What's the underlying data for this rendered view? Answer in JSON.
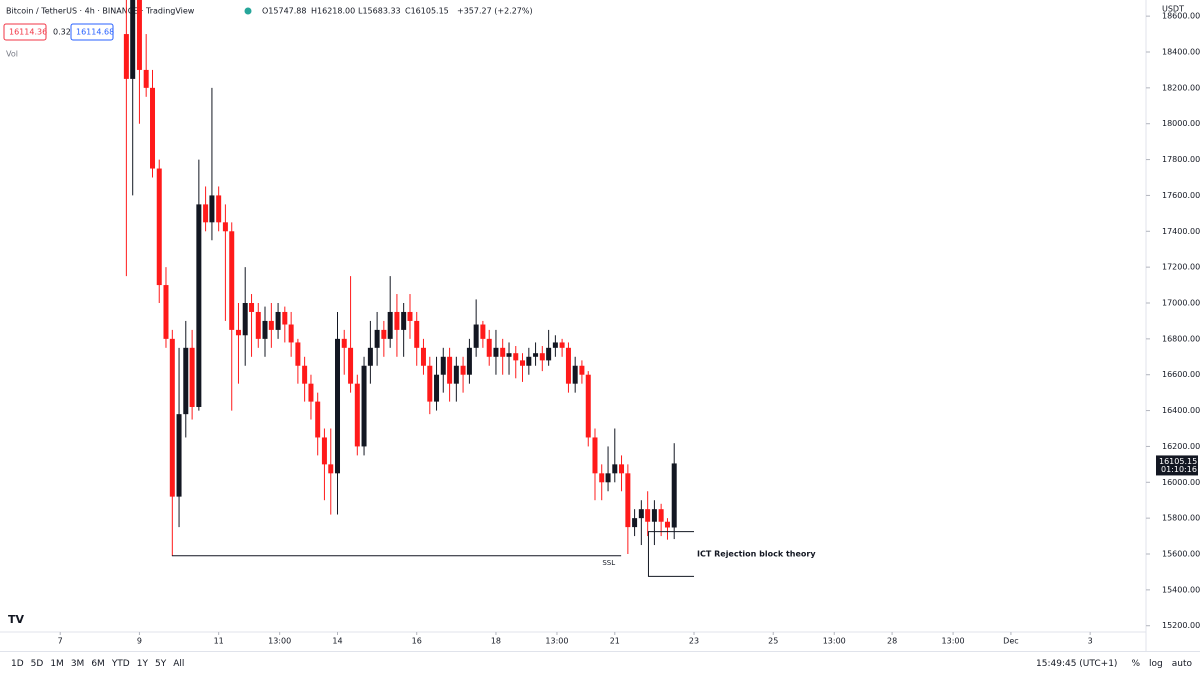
{
  "header": {
    "symbol": "Bitcoin / TetherUS · 4h · BINANCE · TradingView",
    "open": "O15747.88",
    "high": "H16218.00",
    "low": "L15683.33",
    "close": "C16105.15",
    "change": "+357.27 (+2.27%)",
    "bid": "16114.36",
    "spread": "0.32",
    "ask": "16114.68",
    "volume": "Vol",
    "currency": "USDT"
  },
  "chart_data": {
    "type": "candlestick",
    "x": [
      8.67,
      8.83,
      9,
      9.17,
      9.33,
      9.5,
      9.67,
      9.83,
      10,
      10.17,
      10.33,
      10.5,
      10.67,
      10.83,
      11,
      11.17,
      11.33,
      11.5,
      11.67,
      11.83,
      12,
      12.17,
      12.33,
      12.5,
      12.67,
      12.83,
      13,
      13.17,
      13.33,
      13.5,
      13.67,
      13.83,
      14,
      14.17,
      14.33,
      14.5,
      14.67,
      14.83,
      15,
      15.17,
      15.33,
      15.5,
      15.67,
      15.83,
      16,
      16.17,
      16.33,
      16.5,
      16.67,
      16.83,
      17,
      17.17,
      17.33,
      17.5,
      17.67,
      17.83,
      18,
      18.17,
      18.33,
      18.5,
      18.67,
      18.83,
      19,
      19.17,
      19.33,
      19.5,
      19.67,
      19.83,
      20,
      20.17,
      20.33,
      20.5,
      20.67,
      20.83,
      21,
      21.17,
      21.33,
      21.5,
      21.67,
      21.83,
      22,
      22.17,
      22.33,
      22.5
    ],
    "candles": [
      [
        18500,
        18900,
        17150,
        18250
      ],
      [
        18250,
        18850,
        17600,
        18700
      ],
      [
        18700,
        18850,
        18000,
        18300
      ],
      [
        18300,
        18500,
        18150,
        18200
      ],
      [
        18200,
        18300,
        17700,
        17750
      ],
      [
        17750,
        17800,
        17000,
        17100
      ],
      [
        17100,
        17200,
        16750,
        16800
      ],
      [
        16800,
        16850,
        15590,
        15920
      ],
      [
        15920,
        16750,
        15750,
        16380
      ],
      [
        16380,
        16900,
        16250,
        16750
      ],
      [
        16750,
        16850,
        16350,
        16420
      ],
      [
        16420,
        17800,
        16400,
        17550
      ],
      [
        17550,
        17650,
        17400,
        17450
      ],
      [
        17450,
        18200,
        17350,
        17600
      ],
      [
        17600,
        17650,
        17400,
        17450
      ],
      [
        17450,
        17550,
        16900,
        17400
      ],
      [
        17400,
        17450,
        16400,
        16850
      ],
      [
        16850,
        17000,
        16550,
        16820
      ],
      [
        16820,
        17200,
        16650,
        17000
      ],
      [
        17000,
        17050,
        16700,
        16950
      ],
      [
        16950,
        17000,
        16750,
        16800
      ],
      [
        16800,
        16980,
        16700,
        16900
      ],
      [
        16900,
        17000,
        16750,
        16850
      ],
      [
        16850,
        17000,
        16800,
        16950
      ],
      [
        16950,
        16980,
        16780,
        16880
      ],
      [
        16880,
        16950,
        16700,
        16780
      ],
      [
        16780,
        16800,
        16550,
        16650
      ],
      [
        16650,
        16700,
        16450,
        16550
      ],
      [
        16550,
        16600,
        16350,
        16450
      ],
      [
        16450,
        16500,
        16150,
        16250
      ],
      [
        16250,
        16300,
        15900,
        16100
      ],
      [
        16100,
        16300,
        15820,
        16050
      ],
      [
        16050,
        16950,
        15820,
        16800
      ],
      [
        16800,
        16850,
        16600,
        16750
      ],
      [
        16750,
        17150,
        16500,
        16550
      ],
      [
        16550,
        16600,
        16150,
        16200
      ],
      [
        16200,
        16700,
        16150,
        16650
      ],
      [
        16650,
        16900,
        16550,
        16750
      ],
      [
        16750,
        16950,
        16650,
        16850
      ],
      [
        16850,
        16900,
        16700,
        16800
      ],
      [
        16800,
        17150,
        16750,
        16950
      ],
      [
        16950,
        17050,
        16700,
        16850
      ],
      [
        16850,
        17000,
        16700,
        16950
      ],
      [
        16950,
        17050,
        16800,
        16900
      ],
      [
        16900,
        16950,
        16650,
        16750
      ],
      [
        16750,
        16800,
        16600,
        16650
      ],
      [
        16650,
        16700,
        16380,
        16450
      ],
      [
        16450,
        16700,
        16400,
        16600
      ],
      [
        16600,
        16750,
        16500,
        16700
      ],
      [
        16700,
        16750,
        16450,
        16550
      ],
      [
        16550,
        16700,
        16450,
        16650
      ],
      [
        16650,
        16700,
        16500,
        16600
      ],
      [
        16600,
        16800,
        16550,
        16750
      ],
      [
        16750,
        17020,
        16700,
        16880
      ],
      [
        16880,
        16900,
        16750,
        16800
      ],
      [
        16800,
        16850,
        16650,
        16700
      ],
      [
        16700,
        16850,
        16600,
        16750
      ],
      [
        16750,
        16800,
        16600,
        16700
      ],
      [
        16700,
        16780,
        16600,
        16720
      ],
      [
        16720,
        16760,
        16580,
        16680
      ],
      [
        16680,
        16720,
        16560,
        16650
      ],
      [
        16650,
        16750,
        16600,
        16700
      ],
      [
        16700,
        16780,
        16650,
        16720
      ],
      [
        16720,
        16760,
        16620,
        16680
      ],
      [
        16680,
        16850,
        16650,
        16750
      ],
      [
        16750,
        16820,
        16700,
        16780
      ],
      [
        16780,
        16800,
        16700,
        16750
      ],
      [
        16750,
        16780,
        16500,
        16550
      ],
      [
        16550,
        16700,
        16500,
        16650
      ],
      [
        16650,
        16680,
        16550,
        16600
      ],
      [
        16600,
        16620,
        16200,
        16250
      ],
      [
        16250,
        16300,
        15900,
        16050
      ],
      [
        16050,
        16100,
        15900,
        16000
      ],
      [
        16000,
        16200,
        15950,
        16050
      ],
      [
        16050,
        16300,
        16000,
        16100
      ],
      [
        16100,
        16150,
        15950,
        16050
      ],
      [
        16050,
        16100,
        15600,
        15750
      ],
      [
        15750,
        15850,
        15700,
        15800
      ],
      [
        15800,
        15900,
        15650,
        15850
      ],
      [
        15850,
        15950,
        15700,
        15780
      ],
      [
        15780,
        15900,
        15650,
        15850
      ],
      [
        15850,
        15880,
        15700,
        15780
      ],
      [
        15780,
        15800,
        15680,
        15747.88
      ],
      [
        15747.88,
        16218,
        15683.33,
        16105.15
      ]
    ],
    "xlim": [
      5.48,
      34.41
    ],
    "xticks": [
      7,
      9,
      11,
      {
        "value": 12.54,
        "label": "13:00"
      },
      14,
      16,
      18,
      {
        "value": 19.54,
        "label": "13:00"
      },
      21,
      23,
      25,
      {
        "value": 26.54,
        "label": "13:00"
      },
      28,
      {
        "value": 29.54,
        "label": "13:00"
      },
      {
        "value": 31,
        "label": "Dec"
      },
      {
        "value": 33,
        "label": "3"
      }
    ],
    "ylim": [
      15059,
      18690
    ],
    "yticks": [
      {
        "value": 15200,
        "label": "15200.00"
      },
      {
        "value": 15400,
        "label": "15400.00"
      },
      {
        "value": 15600,
        "label": "15600.00"
      },
      {
        "value": 15800,
        "label": "15800.00"
      },
      {
        "value": 16000,
        "label": "16000.00"
      },
      {
        "value": 16200,
        "label": "16200.00"
      },
      {
        "value": 16400,
        "label": "16400.00"
      },
      {
        "value": 16600,
        "label": "16600.00"
      },
      {
        "value": 16800,
        "label": "16800.00"
      },
      {
        "value": 17000,
        "label": "17000.00"
      },
      {
        "value": 17200,
        "label": "17200.00"
      },
      {
        "value": 17400,
        "label": "17400.00"
      },
      {
        "value": 17600,
        "label": "17600.00"
      },
      {
        "value": 17800,
        "label": "17800.00"
      },
      {
        "value": 18000,
        "label": "18000.00"
      },
      {
        "value": 18200,
        "label": "18200.00"
      },
      {
        "value": 18400,
        "label": "18400.00"
      },
      {
        "value": 18600,
        "label": "18600.00"
      }
    ],
    "up_color": "#131722",
    "down_color": "#ff1a1a",
    "last_price": 16105.15,
    "countdown": "01:10:16",
    "annotations": [
      {
        "text": "SSL",
        "y": 15590,
        "x": [
          9.82,
          21.16
        ]
      },
      {
        "text": "ICT Rejection block theory",
        "y": [
          15475,
          15725
        ],
        "x": [
          21.85,
          23.0
        ]
      }
    ]
  },
  "toolbar": {
    "ranges": [
      "1D",
      "5D",
      "1M",
      "3M",
      "6M",
      "YTD",
      "1Y",
      "5Y",
      "All"
    ],
    "clock": "15:49:45 (UTC+1)",
    "percent": "%",
    "log": "log",
    "auto": "auto"
  }
}
